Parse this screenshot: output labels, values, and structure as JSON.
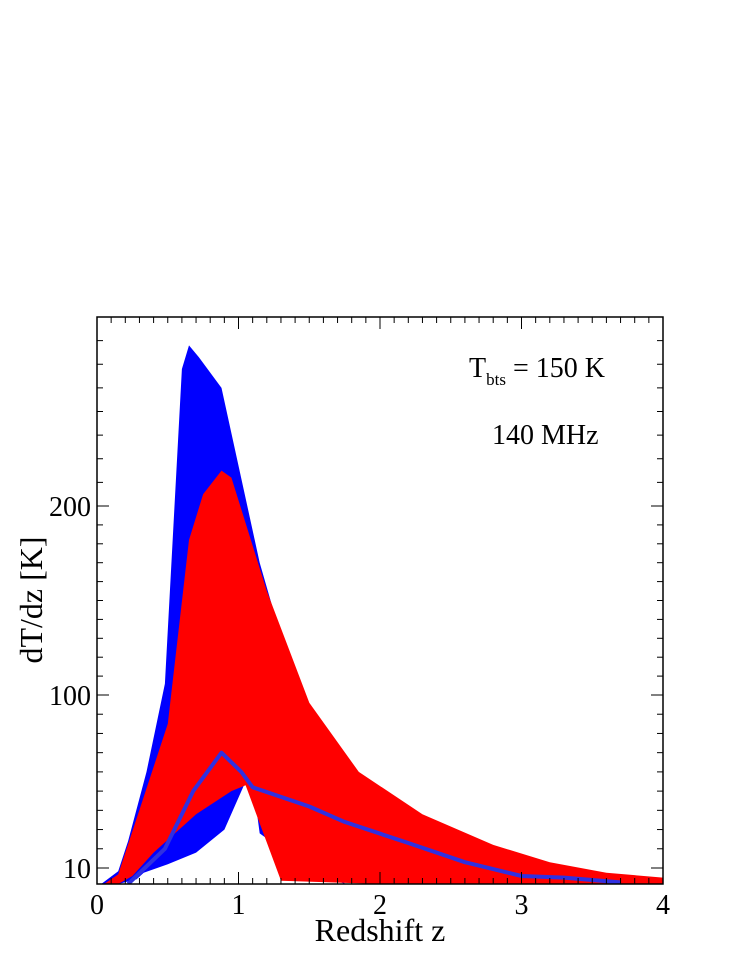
{
  "chart_data": {
    "type": "area",
    "xlabel": "Redshift z",
    "ylabel": "dT/dz  [K]",
    "xlim": [
      0,
      4
    ],
    "y_scale": "nonlinear (tick labels 10, 100, 200)",
    "x_ticks": [
      "0",
      "1",
      "2",
      "3",
      "4"
    ],
    "y_ticks": [
      "10",
      "100",
      "200"
    ],
    "colors": {
      "blue": "#0000ff",
      "red": "#ff0000",
      "line": "#3030e0",
      "frame": "#000000"
    },
    "annotations": {
      "tbts_main": "T",
      "tbts_sub": "bts",
      "tbts_rest": " = 150 K",
      "freq": "140 MHz"
    },
    "series": [
      {
        "kind": "band",
        "color": "blue",
        "upper": [
          {
            "x": 0.03,
            "y": 0
          },
          {
            "x": 0.15,
            "y": 8
          },
          {
            "x": 0.22,
            "y": 24
          },
          {
            "x": 0.35,
            "y": 60
          },
          {
            "x": 0.48,
            "y": 106
          },
          {
            "x": 0.6,
            "y": 258
          },
          {
            "x": 0.65,
            "y": 268
          },
          {
            "x": 0.72,
            "y": 263
          },
          {
            "x": 0.88,
            "y": 250
          },
          {
            "x": 1.15,
            "y": 170
          },
          {
            "x": 1.35,
            "y": 118
          },
          {
            "x": 1.5,
            "y": 77
          }
        ],
        "lower": [
          {
            "x": 1.75,
            "y": 0
          },
          {
            "x": 1.45,
            "y": 12
          },
          {
            "x": 1.15,
            "y": 28
          },
          {
            "x": 1.1,
            "y": 55
          },
          {
            "x": 1.05,
            "y": 55
          },
          {
            "x": 0.9,
            "y": 30
          },
          {
            "x": 0.7,
            "y": 18
          },
          {
            "x": 0.5,
            "y": 12
          },
          {
            "x": 0.33,
            "y": 7
          },
          {
            "x": 0.28,
            "y": 3
          },
          {
            "x": 0.15,
            "y": 0
          }
        ]
      },
      {
        "kind": "band",
        "color": "red",
        "upper": [
          {
            "x": 0.05,
            "y": 0
          },
          {
            "x": 0.15,
            "y": 6
          },
          {
            "x": 0.5,
            "y": 85
          },
          {
            "x": 0.65,
            "y": 182
          },
          {
            "x": 0.75,
            "y": 205
          },
          {
            "x": 0.88,
            "y": 215
          },
          {
            "x": 0.95,
            "y": 212
          },
          {
            "x": 1.2,
            "y": 155
          },
          {
            "x": 1.5,
            "y": 96
          },
          {
            "x": 1.85,
            "y": 60
          },
          {
            "x": 2.3,
            "y": 38
          },
          {
            "x": 2.8,
            "y": 22
          },
          {
            "x": 3.2,
            "y": 13
          },
          {
            "x": 3.6,
            "y": 7
          },
          {
            "x": 4.0,
            "y": 4
          }
        ],
        "lower": [
          {
            "x": 4.0,
            "y": 0
          },
          {
            "x": 3.0,
            "y": 0
          },
          {
            "x": 2.0,
            "y": 0
          },
          {
            "x": 1.3,
            "y": 2
          },
          {
            "x": 1.05,
            "y": 53
          },
          {
            "x": 0.95,
            "y": 50
          },
          {
            "x": 0.7,
            "y": 38
          },
          {
            "x": 0.4,
            "y": 18
          },
          {
            "x": 0.25,
            "y": 5
          },
          {
            "x": 0.15,
            "y": 0
          }
        ]
      },
      {
        "kind": "line",
        "color": "line",
        "points": [
          {
            "x": 0.22,
            "y": 0
          },
          {
            "x": 0.48,
            "y": 20
          },
          {
            "x": 0.68,
            "y": 50
          },
          {
            "x": 0.88,
            "y": 70
          },
          {
            "x": 1.02,
            "y": 60
          },
          {
            "x": 1.1,
            "y": 52
          },
          {
            "x": 1.5,
            "y": 42
          },
          {
            "x": 1.75,
            "y": 34
          },
          {
            "x": 2.2,
            "y": 23
          },
          {
            "x": 2.6,
            "y": 13
          },
          {
            "x": 3.0,
            "y": 5
          },
          {
            "x": 3.3,
            "y": 4
          },
          {
            "x": 3.7,
            "y": 1
          }
        ]
      }
    ]
  }
}
